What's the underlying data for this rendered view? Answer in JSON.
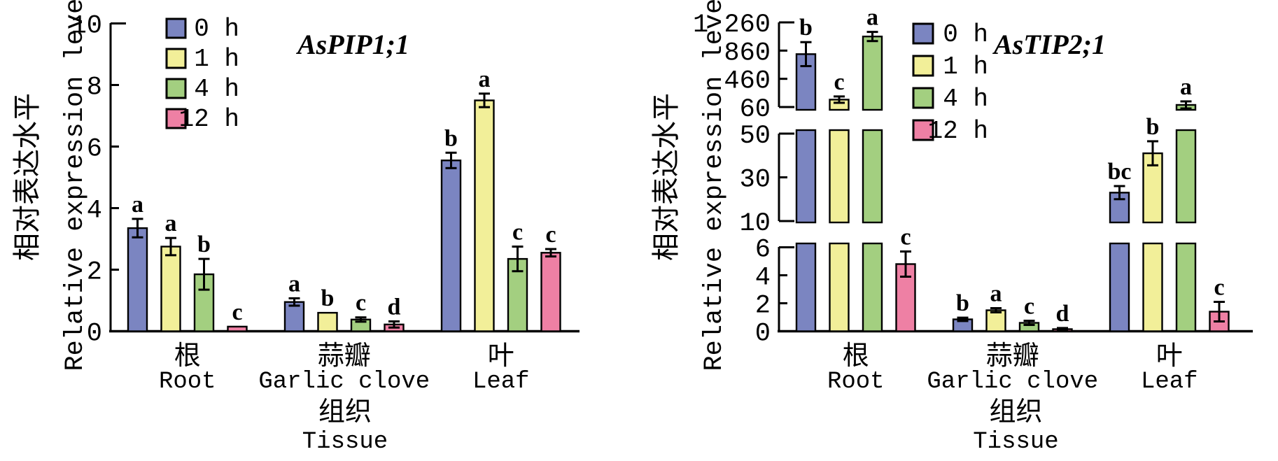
{
  "figure": {
    "background": "#ffffff",
    "bar_stroke": "#000000",
    "timepoint_colors": {
      "0 h": "#7b85c1",
      "1 h": "#f2ef99",
      "4 h": "#a3cf80",
      "12 h": "#ee80a4"
    }
  },
  "chart_data": [
    {
      "type": "bar",
      "title": "AsPIP1;1",
      "ylabel_zh": "相对表达水平",
      "ylabel_en": "Relative expression level",
      "xlabel_zh": "组织",
      "xlabel_en": "Tissue",
      "grid": false,
      "legend_position": "top-left-inside",
      "categories": [
        {
          "zh": "根",
          "en": "Root"
        },
        {
          "zh": "蒜瓣",
          "en": "Garlic clove"
        },
        {
          "zh": "叶",
          "en": "Leaf"
        }
      ],
      "axis_segments": [
        {
          "range": [
            0,
            10
          ],
          "ticks": [
            {
              "v": 0,
              "label": "0"
            },
            {
              "v": 2,
              "label": "2"
            },
            {
              "v": 4,
              "label": "4"
            },
            {
              "v": 6,
              "label": "6"
            },
            {
              "v": 8,
              "label": "8"
            },
            {
              "v": 10,
              "label": "10"
            }
          ]
        }
      ],
      "series": [
        {
          "name": "0 h",
          "color": "#7b85c1",
          "values": [
            3.35,
            0.95,
            5.55
          ],
          "errors": [
            0.3,
            0.12,
            0.25
          ],
          "letters": [
            "a",
            "a",
            "b"
          ]
        },
        {
          "name": "1 h",
          "color": "#f2ef99",
          "values": [
            2.75,
            0.6,
            7.5
          ],
          "errors": [
            0.28,
            0,
            0.22
          ],
          "letters": [
            "a",
            "b",
            "a"
          ]
        },
        {
          "name": "4 h",
          "color": "#a3cf80",
          "values": [
            1.85,
            0.38,
            2.35
          ],
          "errors": [
            0.5,
            0.07,
            0.4
          ],
          "letters": [
            "b",
            "c",
            "c"
          ]
        },
        {
          "name": "12 h",
          "color": "#ee80a4",
          "values": [
            0.15,
            0.22,
            2.55
          ],
          "errors": [
            0,
            0.1,
            0.12
          ],
          "letters": [
            "c",
            "d",
            "c"
          ]
        }
      ]
    },
    {
      "type": "bar",
      "title": "AsTIP2;1",
      "ylabel_zh": "相对表达水平",
      "ylabel_en": "Relative expression level",
      "xlabel_zh": "组织",
      "xlabel_en": "Tissue",
      "grid": false,
      "legend_position": "top-inside",
      "axis_break": true,
      "categories": [
        {
          "zh": "根",
          "en": "Root"
        },
        {
          "zh": "蒜瓣",
          "en": "Garlic clove"
        },
        {
          "zh": "叶",
          "en": "Leaf"
        }
      ],
      "axis_segments": [
        {
          "range": [
            0,
            6
          ],
          "ticks": [
            {
              "v": 0,
              "label": "0"
            },
            {
              "v": 2,
              "label": "2"
            },
            {
              "v": 4,
              "label": "4"
            },
            {
              "v": 6,
              "label": "6"
            }
          ]
        },
        {
          "range": [
            10,
            50
          ],
          "ticks": [
            {
              "v": 10,
              "label": "10"
            },
            {
              "v": 30,
              "label": "30"
            },
            {
              "v": 50,
              "label": "50"
            }
          ]
        },
        {
          "range": [
            60,
            1260
          ],
          "ticks": [
            {
              "v": 60,
              "label": "60"
            },
            {
              "v": 460,
              "label": "460"
            },
            {
              "v": 860,
              "label": "860"
            },
            {
              "v": 1260,
              "label": "1 260"
            }
          ]
        }
      ],
      "series": [
        {
          "name": "0 h",
          "color": "#7b85c1",
          "values": [
            810,
            0.85,
            23
          ],
          "errors": [
            170,
            0.12,
            3
          ],
          "letters": [
            "b",
            "b",
            "bc"
          ]
        },
        {
          "name": "1 h",
          "color": "#f2ef99",
          "values": [
            165,
            1.5,
            41
          ],
          "errors": [
            45,
            0.15,
            5.5
          ],
          "letters": [
            "c",
            "a",
            "b"
          ]
        },
        {
          "name": "4 h",
          "color": "#a3cf80",
          "values": [
            1060,
            0.6,
            90
          ],
          "errors": [
            65,
            0.15,
            50
          ],
          "letters": [
            "a",
            "c",
            "a"
          ]
        },
        {
          "name": "12 h",
          "color": "#ee80a4",
          "values": [
            4.8,
            0.15,
            1.4
          ],
          "errors": [
            0.9,
            0.08,
            0.7
          ],
          "letters": [
            "c",
            "d",
            "c"
          ]
        }
      ]
    }
  ]
}
